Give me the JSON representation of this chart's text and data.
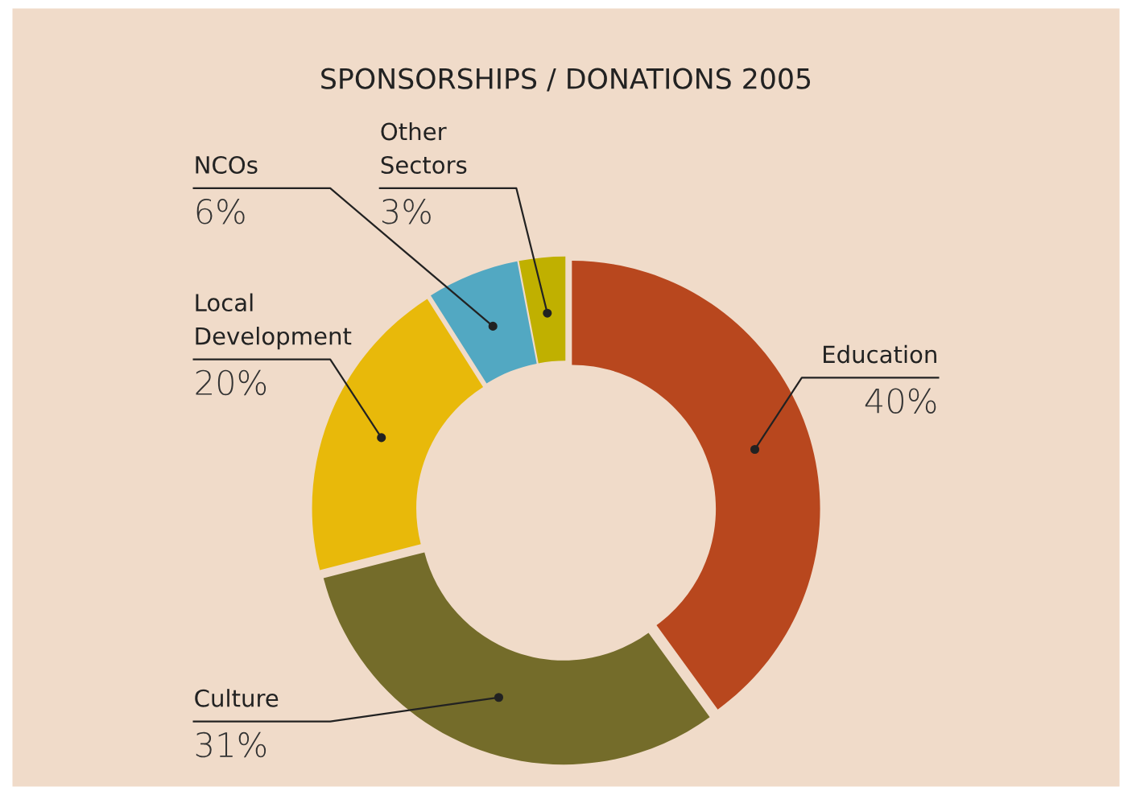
{
  "chart_data": {
    "type": "donut",
    "title": "SPONSORSHIPS / DONATIONS 2005",
    "categories": [
      "Education",
      "Culture",
      "Local\nDevelopment",
      "NCOs",
      "Other\nSectors"
    ],
    "values": [
      40,
      31,
      20,
      6,
      3
    ],
    "value_labels": [
      "40%",
      "31%",
      "20%",
      "6%",
      "3%"
    ],
    "colors": [
      "#b8471e",
      "#746c2a",
      "#e8b90a",
      "#52a8c2",
      "#c0b000"
    ],
    "legend": false
  }
}
